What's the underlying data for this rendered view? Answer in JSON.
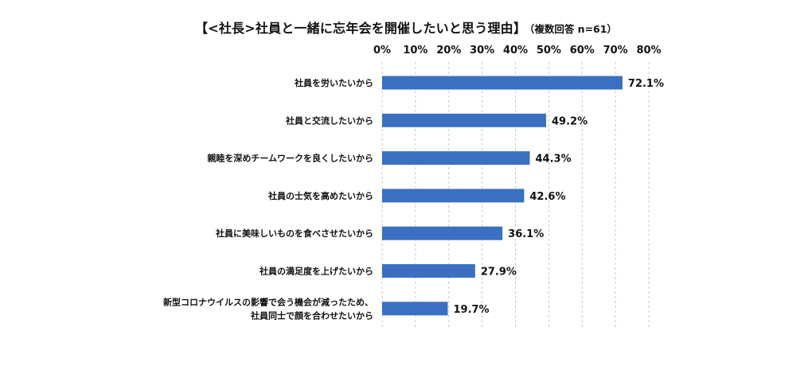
{
  "chart_data": {
    "type": "bar",
    "orientation": "horizontal",
    "title": "【<社長>社員と一緒に忘年会を開催したいと思う理由】",
    "subtitle": "（複数回答 n=61）",
    "categories": [
      [
        "社員を労いたいから"
      ],
      [
        "社員と交流したいから"
      ],
      [
        "親睦を深めチームワークを良くしたいから"
      ],
      [
        "社員の士気を高めたいから"
      ],
      [
        "社員に美味しいものを食べさせたいから"
      ],
      [
        "社員の満足度を上げたいから"
      ],
      [
        "新型コロナウイルスの影響で会う機会が減ったため、",
        "社員同士で顔を合わせたいから"
      ]
    ],
    "values": [
      72.1,
      49.2,
      44.3,
      42.6,
      36.1,
      27.9,
      19.7
    ],
    "value_labels": [
      "72.1%",
      "49.2%",
      "44.3%",
      "42.6%",
      "36.1%",
      "27.9%",
      "19.7%"
    ],
    "x_ticks": [
      "0%",
      "10%",
      "20%",
      "30%",
      "40%",
      "50%",
      "60%",
      "70%",
      "80%"
    ],
    "xlim": [
      0,
      80
    ],
    "axis_position": "top",
    "grid": "vertical dashed",
    "bar_color": "#3b6fc1",
    "grid_color": "#c8c8c8"
  }
}
